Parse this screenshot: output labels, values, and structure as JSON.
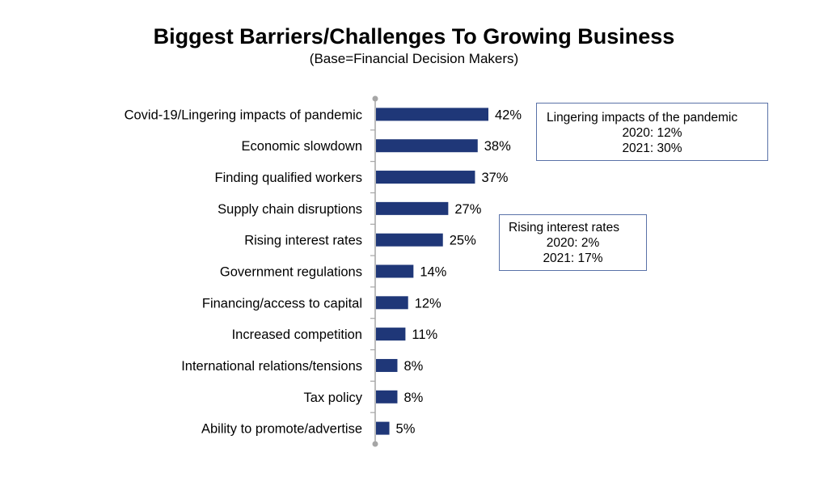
{
  "chart_data": {
    "type": "bar",
    "orientation": "horizontal",
    "title": "Biggest Barriers/Challenges To Growing Business",
    "subtitle": "(Base=Financial Decision Makers)",
    "categories": [
      "Covid-19/Lingering impacts of pandemic",
      "Economic slowdown",
      "Finding qualified workers",
      "Supply chain disruptions",
      "Rising interest rates",
      "Government regulations",
      "Financing/access to capital",
      "Increased competition",
      "International relations/tensions",
      "Tax policy",
      "Ability to promote/advertise"
    ],
    "values": [
      42,
      38,
      37,
      27,
      25,
      14,
      12,
      11,
      8,
      8,
      5
    ],
    "data_labels": [
      "42%",
      "38%",
      "37%",
      "27%",
      "25%",
      "14%",
      "12%",
      "11%",
      "8%",
      "8%",
      "5%"
    ],
    "unit": "%",
    "xlim": [
      0,
      100
    ],
    "grid": false,
    "bar_color": "#1f3778",
    "annotations": [
      {
        "heading": "Lingering impacts of the pandemic",
        "lines": [
          "2020: 12%",
          "2021: 30%"
        ]
      },
      {
        "heading": "Rising interest rates",
        "lines": [
          "2020: 2%",
          "2021: 17%"
        ]
      }
    ]
  }
}
